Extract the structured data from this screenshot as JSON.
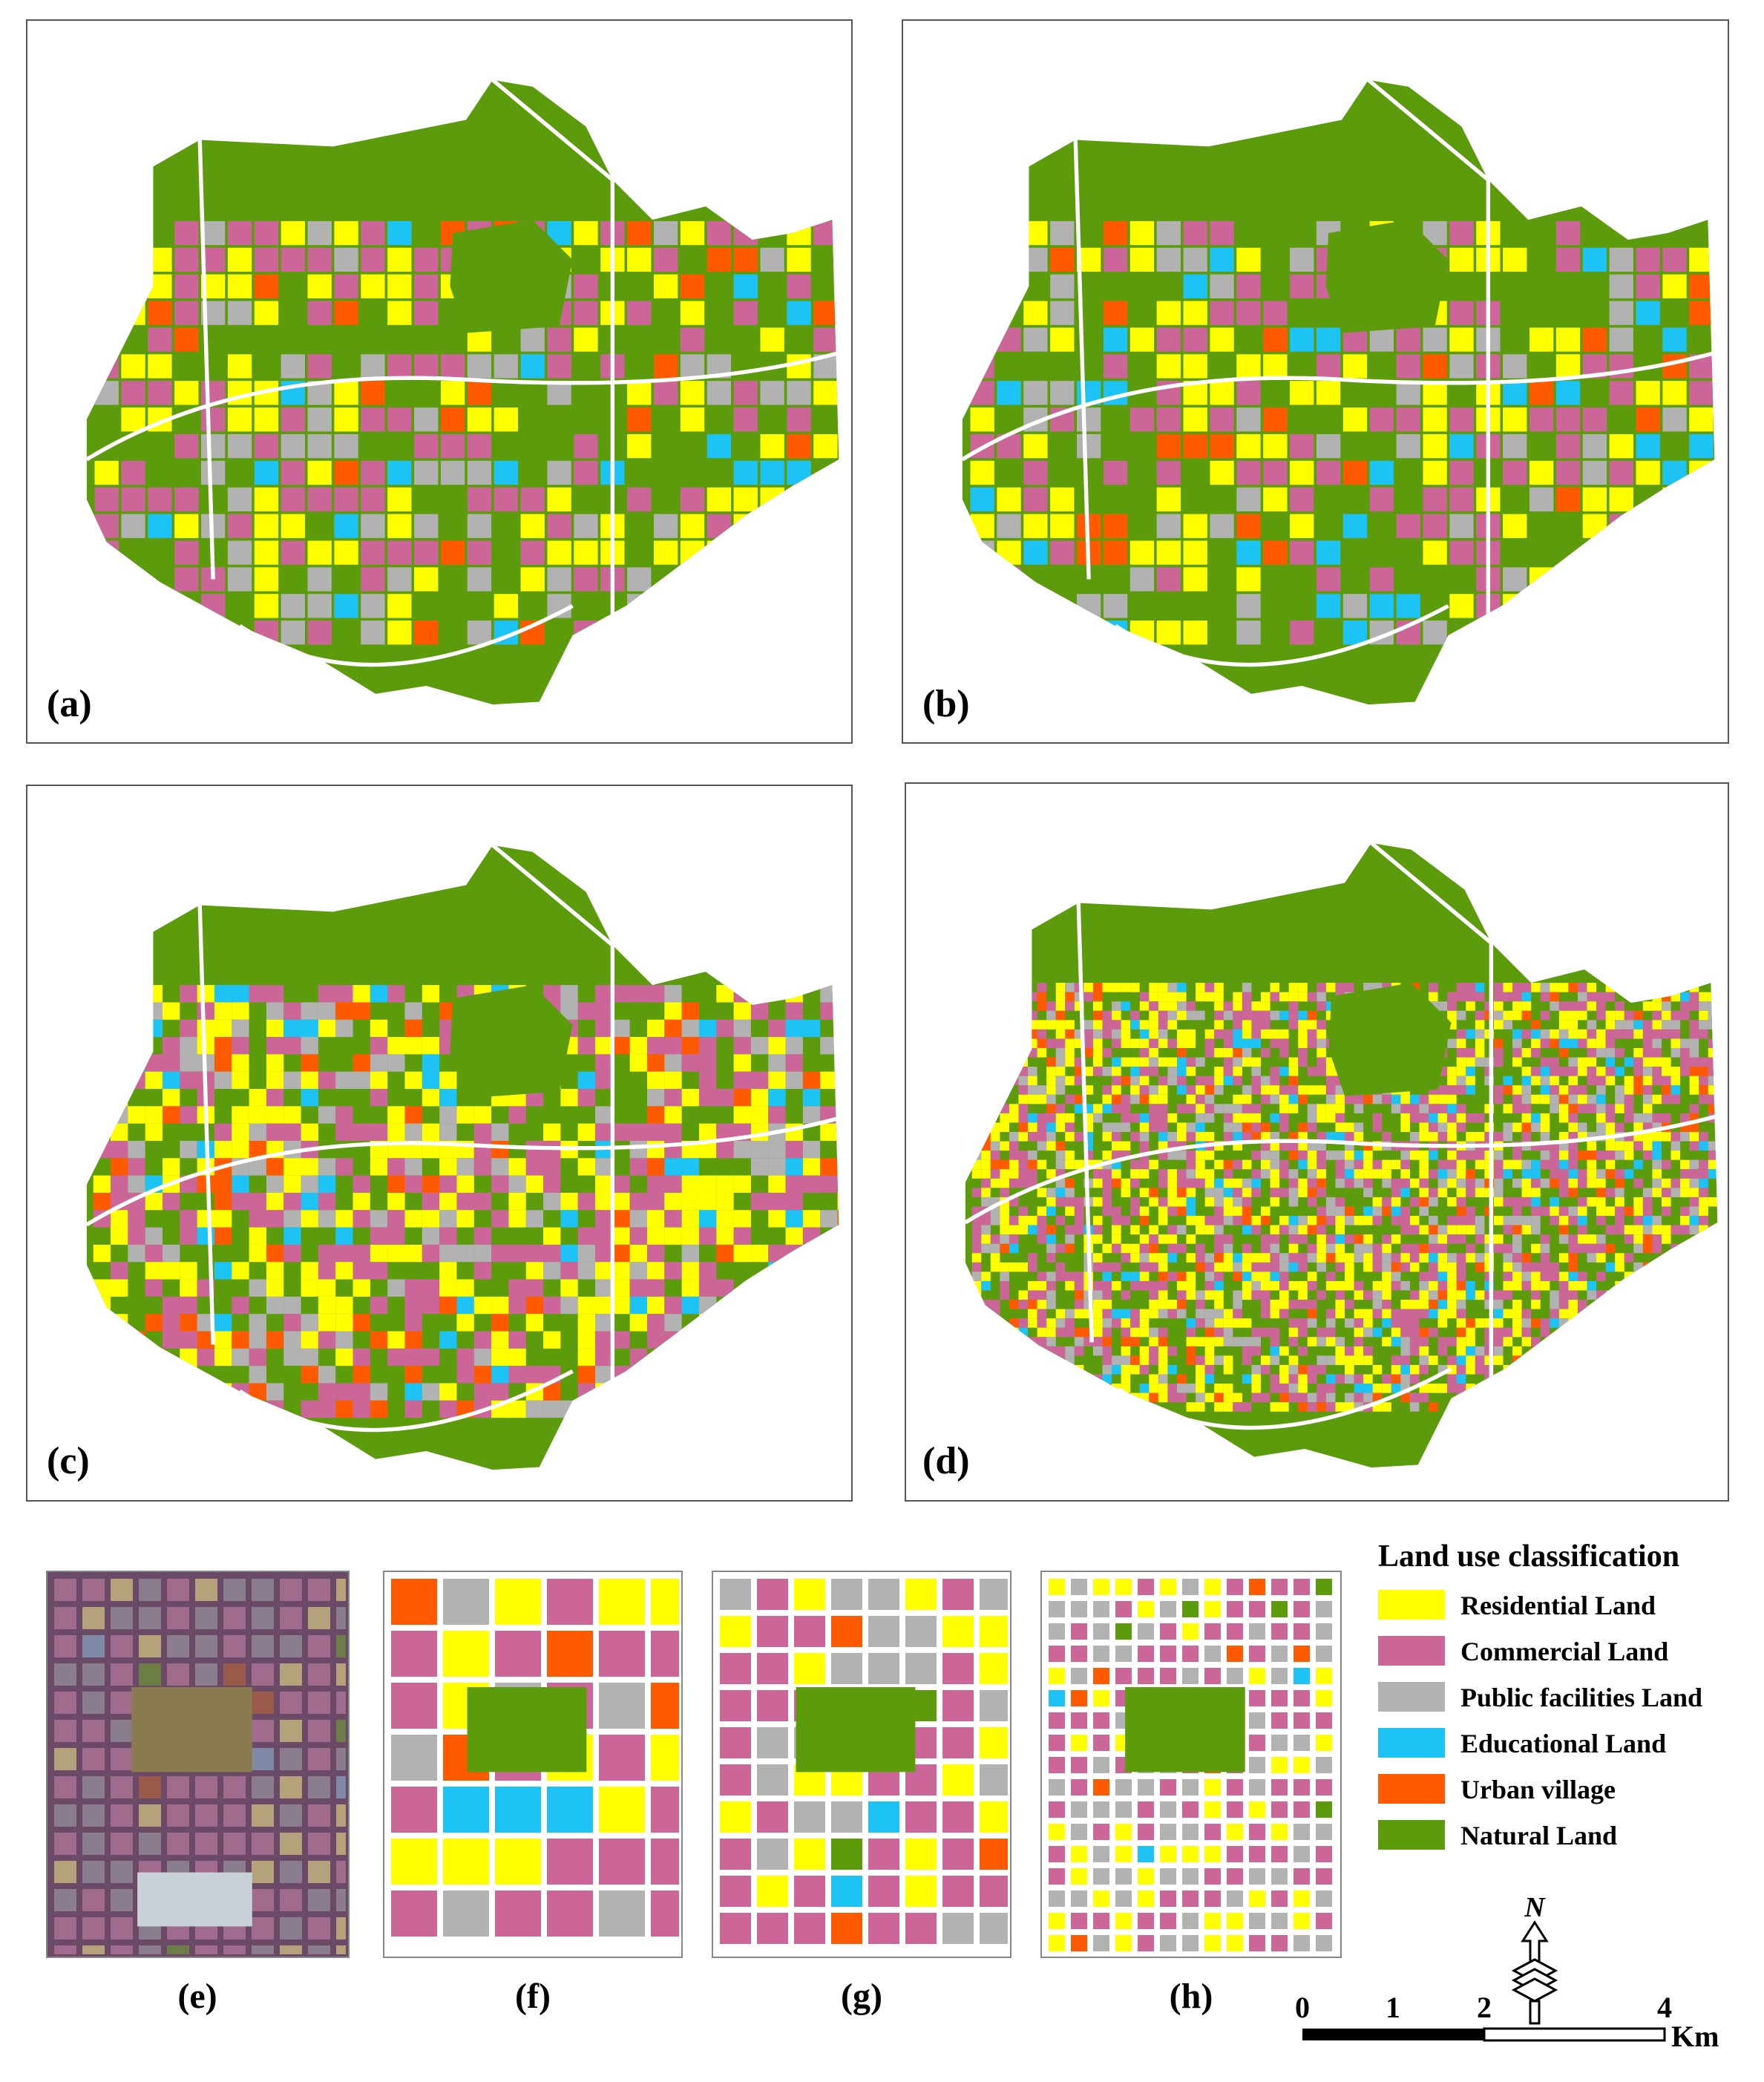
{
  "panels": [
    {
      "label": "(a)"
    },
    {
      "label": "(b)"
    },
    {
      "label": "(c)"
    },
    {
      "label": "(d)"
    },
    {
      "label": "(e)"
    },
    {
      "label": "(f)"
    },
    {
      "label": "(g)"
    },
    {
      "label": "(h)"
    }
  ],
  "legend": {
    "title": "Land use classification",
    "items": [
      {
        "label": "Residential Land",
        "color": "#ffff00"
      },
      {
        "label": "Commercial Land",
        "color": "#cc6699"
      },
      {
        "label": "Public facilities Land",
        "color": "#b2b2b2"
      },
      {
        "label": "Educational Land",
        "color": "#1ec3f5"
      },
      {
        "label": "Urban village",
        "color": "#ff5a00"
      },
      {
        "label": "Natural Land",
        "color": "#5c9c0c"
      }
    ]
  },
  "north_arrow": "N",
  "scale_bar": {
    "ticks": [
      "0",
      "1",
      "2",
      "4"
    ],
    "unit": "Km"
  }
}
